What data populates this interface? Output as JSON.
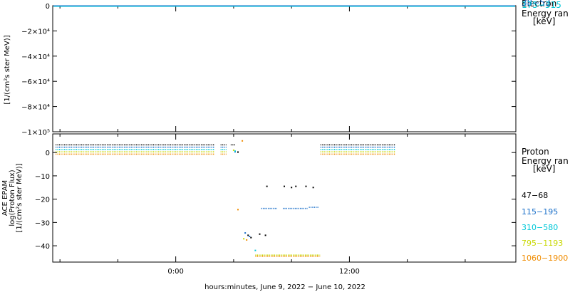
{
  "chart_data": [
    {
      "type": "line",
      "panel": "electron",
      "ylabel_lines": [
        "",
        "[1/(cm²s ster MeV)]"
      ],
      "ylim": [
        -100000,
        0
      ],
      "yticks": [
        {
          "value": 0,
          "label": "0"
        },
        {
          "value": -20000,
          "label": "−2×10⁴"
        },
        {
          "value": -40000,
          "label": "−4×10⁴"
        },
        {
          "value": -60000,
          "label": "−6×10⁴"
        },
        {
          "value": -80000,
          "label": "−8×10⁴"
        },
        {
          "value": -100000,
          "label": "−1×10⁵"
        }
      ],
      "legend_title": [
        "Electron",
        "Energy ran",
        "[keV]"
      ],
      "series": [
        {
          "name": "38−53",
          "color": "#1a6fc9",
          "constant": 0
        },
        {
          "name": "175−315",
          "color": "#00c8d8",
          "constant": 0
        }
      ],
      "grid": false
    },
    {
      "type": "scatter",
      "panel": "proton",
      "ylabel_lines": [
        "ACE EPAM",
        "log(Proton Flux)",
        "[1/(cm²s ster MeV)]"
      ],
      "ylim": [
        -47,
        8
      ],
      "yticks": [
        {
          "value": 0,
          "label": "0"
        },
        {
          "value": -10,
          "label": "−10"
        },
        {
          "value": -20,
          "label": "−20"
        },
        {
          "value": -30,
          "label": "−30"
        },
        {
          "value": -40,
          "label": "−40"
        }
      ],
      "legend_title": [
        "Proton",
        "Energy ran",
        "[keV]"
      ],
      "series": [
        {
          "name": "47−68",
          "color": "#000000",
          "segments": [
            {
              "x0": -8.3,
              "x1": 2.7,
              "y": 3.3
            },
            {
              "x0": 3.1,
              "x1": 3.5,
              "y": 3.3
            },
            {
              "x0": 3.8,
              "x1": 4.1,
              "y": 3.3
            },
            {
              "x0": 10.0,
              "x1": 15.2,
              "y": 3.3
            }
          ],
          "points": [
            [
              4.3,
              0.2
            ],
            [
              5.0,
              -35.5
            ],
            [
              5.2,
              -36.5
            ],
            [
              5.8,
              -35.0
            ],
            [
              6.2,
              -35.5
            ],
            [
              6.3,
              -14.5
            ],
            [
              7.5,
              -14.5
            ],
            [
              8.0,
              -15.0
            ],
            [
              8.3,
              -14.5
            ],
            [
              9.0,
              -14.5
            ],
            [
              9.5,
              -15.0
            ]
          ]
        },
        {
          "name": "115−195",
          "color": "#1a6fc9",
          "segments": [
            {
              "x0": -8.3,
              "x1": 2.7,
              "y": 2.3
            },
            {
              "x0": 3.1,
              "x1": 3.5,
              "y": 2.3
            },
            {
              "x0": 10.0,
              "x1": 15.2,
              "y": 2.3
            },
            {
              "x0": 5.9,
              "x1": 7.0,
              "y": -24.0
            },
            {
              "x0": 7.4,
              "x1": 9.1,
              "y": -24.0
            },
            {
              "x0": 9.2,
              "x1": 9.9,
              "y": -23.5
            }
          ],
          "points": [
            [
              4.1,
              0.3
            ],
            [
              4.8,
              -34.5
            ],
            [
              5.1,
              -36.0
            ]
          ]
        },
        {
          "name": "310−580",
          "color": "#00c8d8",
          "segments": [
            {
              "x0": -8.3,
              "x1": 2.7,
              "y": 1.3
            },
            {
              "x0": 3.1,
              "x1": 3.5,
              "y": 1.3
            },
            {
              "x0": 10.0,
              "x1": 15.2,
              "y": 1.3
            }
          ],
          "points": [
            [
              4.1,
              0.6
            ],
            [
              5.5,
              -42.0
            ]
          ]
        },
        {
          "name": "795−1193",
          "color": "#c8d800",
          "segments": [
            {
              "x0": -8.3,
              "x1": 2.7,
              "y": 0.3
            },
            {
              "x0": 3.1,
              "x1": 3.5,
              "y": 0.3
            },
            {
              "x0": 10.0,
              "x1": 15.2,
              "y": 0.3
            },
            {
              "x0": 5.5,
              "x1": 10.0,
              "y": -44.0
            }
          ],
          "points": [
            [
              4.0,
              1.0
            ],
            [
              4.7,
              -37.0
            ]
          ]
        },
        {
          "name": "1060−1900",
          "color": "#f08c00",
          "segments": [
            {
              "x0": -8.3,
              "x1": 2.7,
              "y": -0.7
            },
            {
              "x0": 3.1,
              "x1": 3.5,
              "y": -0.7
            },
            {
              "x0": 10.0,
              "x1": 15.2,
              "y": -0.7
            },
            {
              "x0": 5.5,
              "x1": 10.0,
              "y": -44.5
            }
          ],
          "points": [
            [
              4.6,
              5.0
            ],
            [
              4.3,
              -24.5
            ],
            [
              4.9,
              -37.5
            ]
          ]
        }
      ],
      "grid": false
    }
  ],
  "x_axis": {
    "xlim": [
      -8.5,
      23.5
    ],
    "major_ticks": [
      {
        "value": 0,
        "label": "0:00"
      },
      {
        "value": 12,
        "label": "12:00"
      }
    ],
    "minor_ticks": [
      -8,
      -4,
      4,
      8,
      16,
      20
    ],
    "label": "hours:minutes, June  9, 2022 − June 10, 2022"
  },
  "colors": {
    "black": "#000000",
    "blue": "#1a6fc9",
    "cyan": "#00c8d8",
    "yellow": "#c8d800",
    "orange": "#f08c00"
  }
}
